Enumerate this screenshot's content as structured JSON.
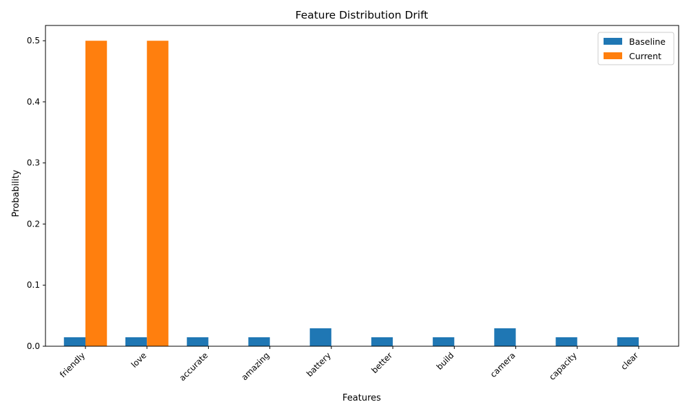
{
  "chart_data": {
    "type": "bar",
    "title": "Feature Distribution Drift",
    "xlabel": "Features",
    "ylabel": "Probability",
    "categories": [
      "friendly",
      "love",
      "accurate",
      "amazing",
      "battery",
      "better",
      "build",
      "camera",
      "capacity",
      "clear"
    ],
    "series": [
      {
        "name": "Baseline",
        "color": "#1f77b4",
        "values": [
          0.0147,
          0.0147,
          0.0147,
          0.0147,
          0.0294,
          0.0147,
          0.0147,
          0.0294,
          0.0147,
          0.0147
        ]
      },
      {
        "name": "Current",
        "color": "#ff7f0e",
        "values": [
          0.5,
          0.5,
          0,
          0,
          0,
          0,
          0,
          0,
          0,
          0
        ]
      }
    ],
    "ylim": [
      0,
      0.525
    ],
    "yticks": [
      "0.0",
      "0.1",
      "0.2",
      "0.3",
      "0.4",
      "0.5"
    ],
    "grid": false,
    "legend_position": "top-right"
  }
}
